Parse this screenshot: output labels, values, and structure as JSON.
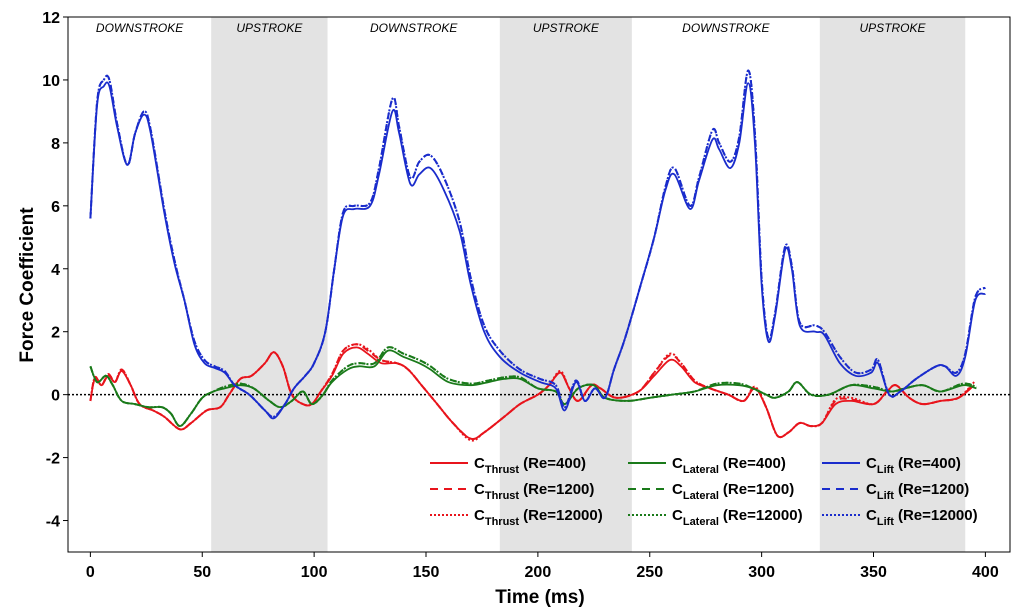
{
  "chart_data": {
    "type": "line",
    "xlabel": "Time (ms)",
    "ylabel": "Force Coefficient",
    "xlim": [
      -10,
      411
    ],
    "ylim": [
      -5,
      12
    ],
    "xticks": [
      0,
      50,
      100,
      150,
      200,
      250,
      300,
      350,
      400
    ],
    "yticks": [
      -4,
      -2,
      0,
      2,
      4,
      6,
      8,
      10,
      12
    ],
    "zero_line": "dotted",
    "legend_position": "bottom-right",
    "phases": [
      {
        "label": "DOWNSTROKE",
        "start": -10,
        "end": 54,
        "shaded": false
      },
      {
        "label": "UPSTROKE",
        "start": 54,
        "end": 106,
        "shaded": true
      },
      {
        "label": "DOWNSTROKE",
        "start": 106,
        "end": 183,
        "shaded": false
      },
      {
        "label": "UPSTROKE",
        "start": 183,
        "end": 242,
        "shaded": true
      },
      {
        "label": "DOWNSTROKE",
        "start": 242,
        "end": 326,
        "shaded": false
      },
      {
        "label": "UPSTROKE",
        "start": 326,
        "end": 391,
        "shaded": true
      }
    ],
    "shade_color": "#e3e3e3",
    "quantities": [
      {
        "base": "C",
        "sub": "Thrust",
        "color": "#e8141c",
        "t": [
          0,
          2,
          5,
          8,
          11,
          14,
          18,
          22,
          28,
          33,
          40,
          45,
          52,
          58,
          62,
          67,
          72,
          78,
          82,
          86,
          90,
          95,
          99,
          103,
          108,
          113,
          119,
          124,
          130,
          137,
          142,
          148,
          155,
          162,
          170,
          176,
          185,
          192,
          200,
          205,
          210,
          214,
          218,
          224,
          228,
          235,
          245,
          252,
          259,
          264,
          270,
          277,
          285,
          292,
          297,
          302,
          307,
          312,
          317,
          322,
          327,
          333,
          340,
          350,
          356,
          360,
          366,
          372,
          380,
          388,
          395
        ],
        "series": [
          {
            "re": "(Re=400)",
            "style": "solid",
            "values": [
              -0.2,
              0.5,
              0.3,
              0.6,
              0.4,
              0.75,
              0.3,
              -0.3,
              -0.5,
              -0.7,
              -1.1,
              -0.9,
              -0.5,
              -0.4,
              0.0,
              0.5,
              0.6,
              1.0,
              1.35,
              0.9,
              0.0,
              -0.3,
              -0.3,
              0.1,
              0.6,
              1.3,
              1.5,
              1.3,
              1.0,
              1.0,
              0.8,
              0.3,
              -0.3,
              -0.9,
              -1.4,
              -1.2,
              -0.7,
              -0.3,
              0.0,
              0.3,
              0.7,
              0.2,
              -0.2,
              0.3,
              0.2,
              -0.1,
              0.1,
              0.6,
              1.1,
              0.9,
              0.4,
              0.2,
              0.0,
              -0.2,
              0.2,
              -0.4,
              -1.3,
              -1.2,
              -0.9,
              -1.0,
              -0.9,
              -0.3,
              -0.2,
              -0.3,
              0.1,
              0.3,
              -0.1,
              -0.3,
              -0.2,
              -0.1,
              0.3
            ]
          },
          {
            "re": "(Re=1200)",
            "style": "dashed",
            "values": [
              -0.2,
              0.55,
              0.3,
              0.65,
              0.4,
              0.8,
              0.3,
              -0.3,
              -0.5,
              -0.7,
              -1.1,
              -0.9,
              -0.5,
              -0.4,
              0.0,
              0.5,
              0.6,
              1.0,
              1.35,
              0.9,
              0.0,
              -0.3,
              -0.3,
              0.1,
              0.65,
              1.4,
              1.6,
              1.4,
              1.1,
              1.0,
              0.8,
              0.3,
              -0.3,
              -0.9,
              -1.4,
              -1.2,
              -0.7,
              -0.3,
              0.0,
              0.3,
              0.7,
              0.2,
              -0.2,
              0.3,
              0.2,
              -0.1,
              0.1,
              0.7,
              1.25,
              1.0,
              0.45,
              0.2,
              0.0,
              -0.2,
              0.25,
              -0.4,
              -1.3,
              -1.2,
              -0.9,
              -1.0,
              -0.9,
              -0.2,
              -0.15,
              -0.3,
              0.1,
              0.3,
              -0.1,
              -0.3,
              -0.2,
              -0.1,
              0.35
            ]
          },
          {
            "re": "(Re=12000)",
            "style": "dotted",
            "values": [
              -0.2,
              0.55,
              0.3,
              0.65,
              0.4,
              0.8,
              0.3,
              -0.3,
              -0.5,
              -0.7,
              -1.1,
              -0.9,
              -0.5,
              -0.4,
              0.0,
              0.5,
              0.6,
              1.0,
              1.35,
              0.9,
              0.0,
              -0.3,
              -0.3,
              0.1,
              0.65,
              1.4,
              1.6,
              1.45,
              1.1,
              1.0,
              0.8,
              0.3,
              -0.3,
              -0.9,
              -1.45,
              -1.2,
              -0.7,
              -0.3,
              0.0,
              0.3,
              0.75,
              0.2,
              -0.2,
              0.3,
              0.2,
              -0.1,
              0.1,
              0.7,
              1.3,
              1.0,
              0.45,
              0.2,
              0.0,
              -0.2,
              0.25,
              -0.4,
              -1.3,
              -1.2,
              -0.9,
              -1.0,
              -0.9,
              -0.15,
              -0.1,
              -0.3,
              0.1,
              0.3,
              -0.1,
              -0.3,
              -0.2,
              -0.1,
              0.4
            ]
          }
        ]
      },
      {
        "base": "C",
        "sub": "Lateral",
        "color": "#1a7a1a",
        "t": [
          0,
          3,
          7,
          10,
          14,
          20,
          26,
          32,
          36,
          40,
          45,
          50,
          55,
          60,
          67,
          73,
          80,
          85,
          90,
          95,
          99,
          104,
          108,
          115,
          120,
          127,
          133,
          140,
          147,
          152,
          160,
          170,
          178,
          185,
          192,
          200,
          208,
          212,
          218,
          225,
          230,
          240,
          250,
          260,
          270,
          280,
          290,
          296,
          302,
          306,
          312,
          316,
          322,
          330,
          340,
          350,
          358,
          364,
          372,
          380,
          390,
          396
        ],
        "series": [
          {
            "re": "(Re=400)",
            "style": "solid",
            "values": [
              0.9,
              0.4,
              0.6,
              0.3,
              -0.2,
              -0.3,
              -0.4,
              -0.4,
              -0.6,
              -1.0,
              -0.6,
              -0.1,
              0.1,
              0.2,
              0.3,
              0.2,
              -0.2,
              -0.4,
              -0.2,
              0.1,
              -0.3,
              0.0,
              0.4,
              0.8,
              0.9,
              0.9,
              1.4,
              1.2,
              1.0,
              0.8,
              0.4,
              0.3,
              0.4,
              0.5,
              0.5,
              0.2,
              0.1,
              -0.3,
              0.2,
              0.3,
              -0.1,
              -0.2,
              -0.1,
              0.0,
              0.1,
              0.3,
              0.3,
              0.2,
              0.0,
              -0.1,
              0.1,
              0.4,
              0.0,
              0.0,
              0.3,
              0.2,
              0.1,
              0.2,
              0.3,
              0.1,
              0.3,
              0.2
            ]
          },
          {
            "re": "(Re=1200)",
            "style": "dashed",
            "values": [
              0.9,
              0.4,
              0.6,
              0.3,
              -0.2,
              -0.3,
              -0.4,
              -0.4,
              -0.6,
              -1.0,
              -0.6,
              -0.1,
              0.1,
              0.25,
              0.35,
              0.2,
              -0.2,
              -0.4,
              -0.2,
              0.1,
              -0.3,
              0.0,
              0.45,
              0.9,
              1.0,
              1.0,
              1.5,
              1.3,
              1.1,
              0.9,
              0.5,
              0.35,
              0.45,
              0.55,
              0.55,
              0.2,
              0.1,
              -0.3,
              0.2,
              0.3,
              -0.1,
              -0.2,
              -0.1,
              0.0,
              0.1,
              0.35,
              0.35,
              0.2,
              0.0,
              -0.1,
              0.1,
              0.4,
              0.0,
              0.0,
              0.3,
              0.25,
              0.1,
              0.2,
              0.3,
              0.1,
              0.35,
              0.25
            ]
          },
          {
            "re": "(Re=12000)",
            "style": "dotted",
            "values": [
              0.9,
              0.4,
              0.6,
              0.3,
              -0.2,
              -0.3,
              -0.4,
              -0.4,
              -0.6,
              -1.0,
              -0.6,
              -0.1,
              0.1,
              0.25,
              0.35,
              0.2,
              -0.2,
              -0.4,
              -0.2,
              0.1,
              -0.3,
              0.0,
              0.45,
              0.9,
              1.0,
              1.0,
              1.5,
              1.3,
              1.1,
              0.9,
              0.5,
              0.35,
              0.45,
              0.55,
              0.55,
              0.2,
              0.1,
              -0.3,
              0.2,
              0.3,
              -0.1,
              -0.2,
              -0.1,
              0.0,
              0.1,
              0.35,
              0.35,
              0.2,
              0.0,
              -0.1,
              0.1,
              0.4,
              0.0,
              0.0,
              0.3,
              0.25,
              0.1,
              0.2,
              0.3,
              0.1,
              0.35,
              0.25
            ]
          }
        ]
      },
      {
        "base": "C",
        "sub": "Lift",
        "color": "#1a2ccc",
        "t": [
          0,
          3,
          6,
          8.5,
          12,
          16.5,
          20,
          24,
          27,
          33,
          37.5,
          42,
          46.5,
          51,
          55.5,
          60,
          64.5,
          71,
          78,
          82,
          87,
          91,
          96,
          100,
          105,
          109,
          113,
          118,
          125,
          129,
          135,
          138,
          143,
          147,
          152,
          158,
          165,
          170,
          176,
          183,
          192,
          201,
          208,
          212,
          217,
          221,
          225.5,
          230,
          234,
          239,
          246,
          252,
          257,
          261,
          268,
          272,
          278,
          281,
          286,
          290,
          294,
          297,
          300,
          303,
          306,
          310.5,
          313.5,
          317,
          324,
          328,
          335,
          342,
          349,
          352,
          357,
          362,
          369,
          378,
          382,
          387,
          391,
          395.5,
          400
        ],
        "series": [
          {
            "re": "(Re=400)",
            "style": "solid",
            "values": [
              5.6,
              9.2,
              9.8,
              9.8,
              8.5,
              7.3,
              8.3,
              8.9,
              8.3,
              5.8,
              4.2,
              3.0,
              1.6,
              1.0,
              0.85,
              0.7,
              0.3,
              0.0,
              -0.5,
              -0.75,
              -0.3,
              0.2,
              0.6,
              1.0,
              2.0,
              4.0,
              5.7,
              5.9,
              6.0,
              7.0,
              9.0,
              8.3,
              6.7,
              7.0,
              7.2,
              6.5,
              5.2,
              3.5,
              2.0,
              1.2,
              0.7,
              0.4,
              0.2,
              -0.5,
              0.4,
              -0.2,
              0.2,
              -0.1,
              0.8,
              1.8,
              3.5,
              5.0,
              6.5,
              7.0,
              5.9,
              6.8,
              8.1,
              7.8,
              7.2,
              8.0,
              9.9,
              8.0,
              3.5,
              1.7,
              2.5,
              4.6,
              4.0,
              2.2,
              2.0,
              1.9,
              1.0,
              0.6,
              0.7,
              1.0,
              0.0,
              0.1,
              0.5,
              0.9,
              0.9,
              0.6,
              1.2,
              3.0,
              3.2
            ]
          },
          {
            "re": "(Re=1200)",
            "style": "dashed",
            "values": [
              5.6,
              9.3,
              10.0,
              10.0,
              8.6,
              7.3,
              8.3,
              9.0,
              8.4,
              5.9,
              4.3,
              3.0,
              1.7,
              1.1,
              0.9,
              0.75,
              0.3,
              0.0,
              -0.5,
              -0.7,
              -0.3,
              0.2,
              0.6,
              1.0,
              2.0,
              4.0,
              5.8,
              6.0,
              6.1,
              7.2,
              9.4,
              8.5,
              6.9,
              7.4,
              7.6,
              6.9,
              5.5,
              3.7,
              2.2,
              1.4,
              0.8,
              0.5,
              0.3,
              -0.4,
              0.45,
              -0.2,
              0.2,
              -0.1,
              0.8,
              1.8,
              3.5,
              5.0,
              6.6,
              7.2,
              6.0,
              6.9,
              8.4,
              8.0,
              7.4,
              8.2,
              10.3,
              8.3,
              3.7,
              1.8,
              2.6,
              4.7,
              4.1,
              2.3,
              2.2,
              2.0,
              1.2,
              0.7,
              0.8,
              1.1,
              0.0,
              0.1,
              0.5,
              0.9,
              0.9,
              0.7,
              1.3,
              3.1,
              3.4
            ]
          },
          {
            "re": "(Re=12000)",
            "style": "dotted",
            "values": [
              5.6,
              9.3,
              10.0,
              10.0,
              8.6,
              7.3,
              8.3,
              9.0,
              8.4,
              5.9,
              4.3,
              3.0,
              1.7,
              1.1,
              0.9,
              0.75,
              0.3,
              0.0,
              -0.5,
              -0.7,
              -0.3,
              0.2,
              0.6,
              1.0,
              2.0,
              4.0,
              5.8,
              6.0,
              6.1,
              7.2,
              9.4,
              8.5,
              6.9,
              7.4,
              7.6,
              6.9,
              5.5,
              3.7,
              2.2,
              1.4,
              0.8,
              0.5,
              0.3,
              -0.4,
              0.45,
              -0.2,
              0.2,
              -0.1,
              0.8,
              1.8,
              3.5,
              5.0,
              6.6,
              7.2,
              6.0,
              6.9,
              8.4,
              8.0,
              7.4,
              8.2,
              10.3,
              8.3,
              3.7,
              1.8,
              2.6,
              4.7,
              4.1,
              2.3,
              2.2,
              2.0,
              1.2,
              0.7,
              0.8,
              1.1,
              0.0,
              0.1,
              0.5,
              0.9,
              0.9,
              0.7,
              1.3,
              3.1,
              3.4
            ]
          }
        ]
      }
    ]
  }
}
